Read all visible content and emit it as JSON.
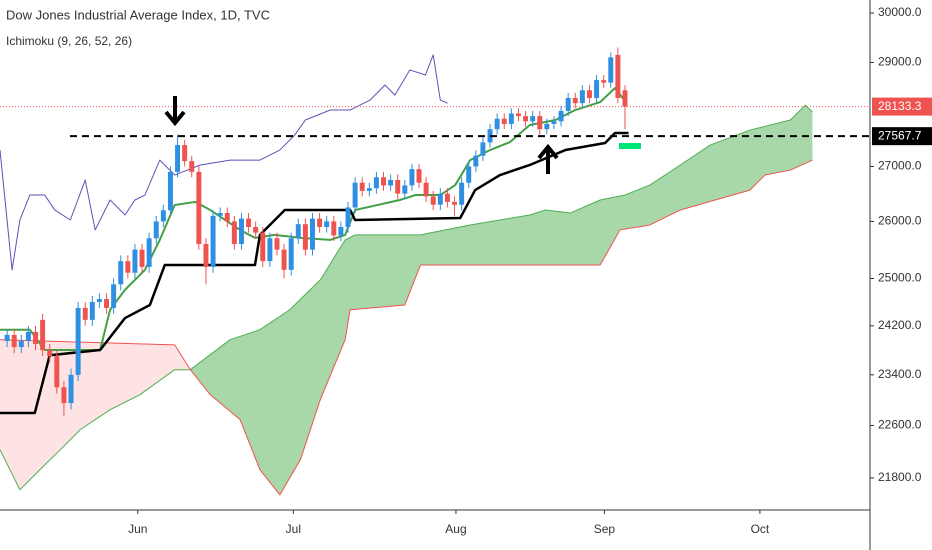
{
  "chart_data": {
    "type": "candlestick",
    "title": "Dow Jones Industrial Average Index, 1D, TVC",
    "subtitle": "Ichimoku (9, 26, 52, 26)",
    "log_scale": true,
    "grid": false,
    "xlim": [
      -1,
      121.5
    ],
    "xticks": [
      {
        "value": 18.4,
        "label": "Jun"
      },
      {
        "value": 40.3,
        "label": "Jul"
      },
      {
        "value": 63.2,
        "label": "Aug"
      },
      {
        "value": 84.1,
        "label": "Sep"
      },
      {
        "value": 106,
        "label": "Oct"
      }
    ],
    "ylim": [
      21325,
      30270
    ],
    "yticks": [
      {
        "value": 30000,
        "label": "30000.0"
      },
      {
        "value": 29000,
        "label": "29000.0"
      },
      {
        "value": 27000,
        "label": "27000.0"
      },
      {
        "value": 26000,
        "label": "26000.0"
      },
      {
        "value": 25000,
        "label": "25000.0"
      },
      {
        "value": 24200,
        "label": "24200.0"
      },
      {
        "value": 23400,
        "label": "23400.0"
      },
      {
        "value": 22600,
        "label": "22600.0"
      },
      {
        "value": 21800,
        "label": "21800.0"
      }
    ],
    "candles": {
      "up_color": "#2f8fe0",
      "down_color": "#ef5350",
      "open": [
        23950,
        24050,
        23850,
        23950,
        24100,
        24300,
        23800,
        23700,
        23200,
        22950,
        23400,
        24500,
        24300,
        24600,
        24650,
        24500,
        24900,
        25300,
        25100,
        25500,
        25200,
        25700,
        26000,
        26200,
        26900,
        27400,
        27100,
        26900,
        25600,
        25200,
        26100,
        26150,
        26000,
        25600,
        26050,
        25900,
        25800,
        25300,
        25700,
        25500,
        25150,
        25700,
        25950,
        25500,
        26050,
        25900,
        26000,
        25750,
        25900,
        26250,
        26700,
        26550,
        26600,
        26800,
        26650,
        26750,
        26500,
        26650,
        26950,
        26700,
        26450,
        26300,
        26500,
        26350,
        26300,
        26700,
        27000,
        27200,
        27450,
        27700,
        27900,
        27800,
        28000,
        27950,
        27850,
        27950,
        27700,
        27800,
        27850,
        28050,
        28300,
        28200,
        28450,
        28300,
        28650,
        28600,
        29150,
        28450
      ],
      "high": [
        24150,
        24150,
        24050,
        24200,
        24200,
        24400,
        23900,
        23800,
        23300,
        23500,
        24600,
        24600,
        24700,
        24750,
        24750,
        25000,
        25400,
        25400,
        25600,
        25600,
        25800,
        26100,
        26300,
        27000,
        27600,
        27500,
        27200,
        27000,
        25700,
        26200,
        26250,
        26250,
        26100,
        26150,
        26150,
        26000,
        25900,
        25800,
        25800,
        25600,
        25800,
        26050,
        26050,
        26150,
        26150,
        26100,
        26100,
        26000,
        26350,
        26800,
        26800,
        26700,
        26900,
        26900,
        26850,
        26850,
        26750,
        27050,
        27050,
        26800,
        26550,
        26600,
        26600,
        26450,
        26800,
        27100,
        27300,
        27550,
        27800,
        28000,
        28000,
        28100,
        28100,
        28050,
        28050,
        28050,
        27900,
        27950,
        28150,
        28400,
        28400,
        28550,
        28550,
        28750,
        28750,
        29200,
        29300,
        28550
      ],
      "low": [
        23850,
        23750,
        23750,
        23850,
        23800,
        23700,
        23600,
        23100,
        22750,
        22850,
        23300,
        24200,
        24200,
        24500,
        24400,
        24400,
        24800,
        25000,
        25000,
        25100,
        25100,
        25600,
        25900,
        26100,
        26800,
        27000,
        26800,
        25500,
        24900,
        25100,
        26000,
        25900,
        25500,
        25500,
        25800,
        25700,
        25200,
        25200,
        25400,
        25000,
        25050,
        25600,
        25400,
        25400,
        25800,
        25800,
        25650,
        25650,
        25800,
        26150,
        26450,
        26450,
        26500,
        26550,
        26550,
        26400,
        26400,
        26550,
        26600,
        26350,
        26200,
        26200,
        26250,
        26100,
        26200,
        26600,
        26900,
        27100,
        27350,
        27600,
        27700,
        27700,
        27850,
        27750,
        27750,
        27600,
        27600,
        27700,
        27750,
        27950,
        28100,
        28100,
        28200,
        28200,
        28500,
        28500,
        28200,
        27700
      ],
      "close": [
        24050,
        23850,
        23950,
        24100,
        23900,
        23800,
        23700,
        23200,
        22950,
        23400,
        24500,
        24300,
        24600,
        24650,
        24500,
        24900,
        25300,
        25100,
        25500,
        25200,
        25700,
        26000,
        26200,
        26900,
        27400,
        27100,
        26900,
        25600,
        25200,
        26100,
        26150,
        26000,
        25600,
        26050,
        25900,
        25800,
        25300,
        25700,
        25500,
        25150,
        25700,
        25950,
        25500,
        26050,
        25900,
        26000,
        25750,
        25900,
        26250,
        26700,
        26550,
        26600,
        26800,
        26650,
        26750,
        26500,
        26650,
        26950,
        26700,
        26450,
        26300,
        26500,
        26350,
        26300,
        26700,
        27000,
        27200,
        27450,
        27700,
        27900,
        27800,
        28000,
        27950,
        27850,
        27950,
        27700,
        27800,
        27850,
        28050,
        28300,
        28200,
        28450,
        28300,
        28650,
        28600,
        29100,
        28300,
        28133.3
      ]
    },
    "cloud": {
      "bull_fill": "#a8d8aa",
      "bear_fill": "#fde3e3",
      "span_a": {
        "color": "#4caf50",
        "x": [
          -1,
          1.8,
          4.6,
          7.5,
          10.3,
          14.5,
          18.7,
          23.6,
          25.8,
          31.4,
          35.6,
          39.8,
          44.1,
          47.6,
          49,
          58.2,
          65.2,
          73.6,
          75.8,
          79.3,
          83.5,
          87,
          90.5,
          94.8,
          99,
          104.6,
          110.3,
          112.4,
          113.4
        ],
        "values": [
          22227,
          21623,
          21923,
          22227,
          22535,
          22846,
          23083,
          23482,
          23482,
          23971,
          24136,
          24469,
          24976,
          25672,
          25760,
          25760,
          25936,
          26115,
          26205,
          26150,
          26385,
          26475,
          26657,
          27027,
          27400,
          27683,
          27875,
          28163,
          28030
        ]
      },
      "span_b": {
        "color": "#ef5350",
        "x": [
          -1,
          23.6,
          25.8,
          28.6,
          32.8,
          35.6,
          38.4,
          41.3,
          44.1,
          47.6,
          48.3,
          56,
          58.2,
          83.5,
          86.3,
          90.5,
          94.8,
          99.7,
          104.6,
          106.7,
          110.3,
          113.4
        ],
        "values": [
          23971,
          23886,
          23482,
          23083,
          22691,
          21923,
          21548,
          22075,
          23004,
          23971,
          24469,
          24549,
          25232,
          25232,
          25848,
          25936,
          26205,
          26385,
          26565,
          26841,
          26933,
          27118
        ]
      }
    },
    "lines": [
      {
        "color": "#5e52b5",
        "width": 1,
        "x": [
          -1,
          0.7,
          1.8,
          3.2,
          5.3,
          6.7,
          8.9,
          11,
          12.4,
          14.5,
          16.6,
          18,
          19.4,
          21.5,
          23.6,
          27.2,
          31.4,
          35.6,
          38.4,
          40.5,
          42,
          45.5,
          48.3,
          51.1,
          53.2,
          54.6,
          56.7,
          58.9,
          60,
          61,
          62
        ],
        "values": [
          27306,
          25148,
          26025,
          26475,
          26475,
          26205,
          26025,
          26749,
          25848,
          26385,
          26115,
          26385,
          26475,
          27118,
          26841,
          27027,
          27118,
          27118,
          27306,
          27590,
          27875,
          28067,
          28067,
          28259,
          28553,
          28356,
          28850,
          28750,
          29148,
          28259,
          28200
        ]
      },
      {
        "color": "#43a047",
        "width": 2,
        "x": [
          -1,
          3.2,
          5.3,
          13.1,
          14.5,
          16.6,
          19.4,
          21.5,
          23.6,
          26.5,
          28.6,
          32.8,
          34.9,
          37.7,
          41.3,
          45.5,
          47.6,
          49,
          55.3,
          57.5,
          61,
          63.1,
          65.2,
          68,
          70.8,
          73.6,
          77.2,
          80,
          83.5,
          85.6,
          87
        ],
        "values": [
          24136,
          24136,
          23802,
          23802,
          24469,
          24806,
          25148,
          25672,
          26295,
          26350,
          26205,
          25848,
          25708,
          25760,
          25708,
          25672,
          25760,
          26205,
          26385,
          26475,
          26475,
          26657,
          27118,
          27306,
          27455,
          27780,
          27875,
          28067,
          28220,
          28494,
          28240
        ]
      },
      {
        "color": "#000000",
        "width": 2.5,
        "x": [
          -1,
          3.9,
          6,
          13.1,
          16.6,
          20.1,
          22.2,
          34.9,
          35.6,
          39.1,
          48.3,
          49,
          63.8,
          65.9,
          69.4,
          73.6,
          78.6,
          84.2,
          85.6,
          87.5
        ],
        "values": [
          22795,
          22795,
          23717,
          23802,
          24330,
          24549,
          25232,
          25232,
          25760,
          26205,
          26205,
          26025,
          26060,
          26565,
          26841,
          27027,
          27306,
          27438,
          27628,
          27628
        ]
      }
    ],
    "last_price": {
      "value": 28133.3,
      "color": "#ef5350"
    },
    "level": {
      "value": 27567.7,
      "color": "#000000"
    }
  }
}
